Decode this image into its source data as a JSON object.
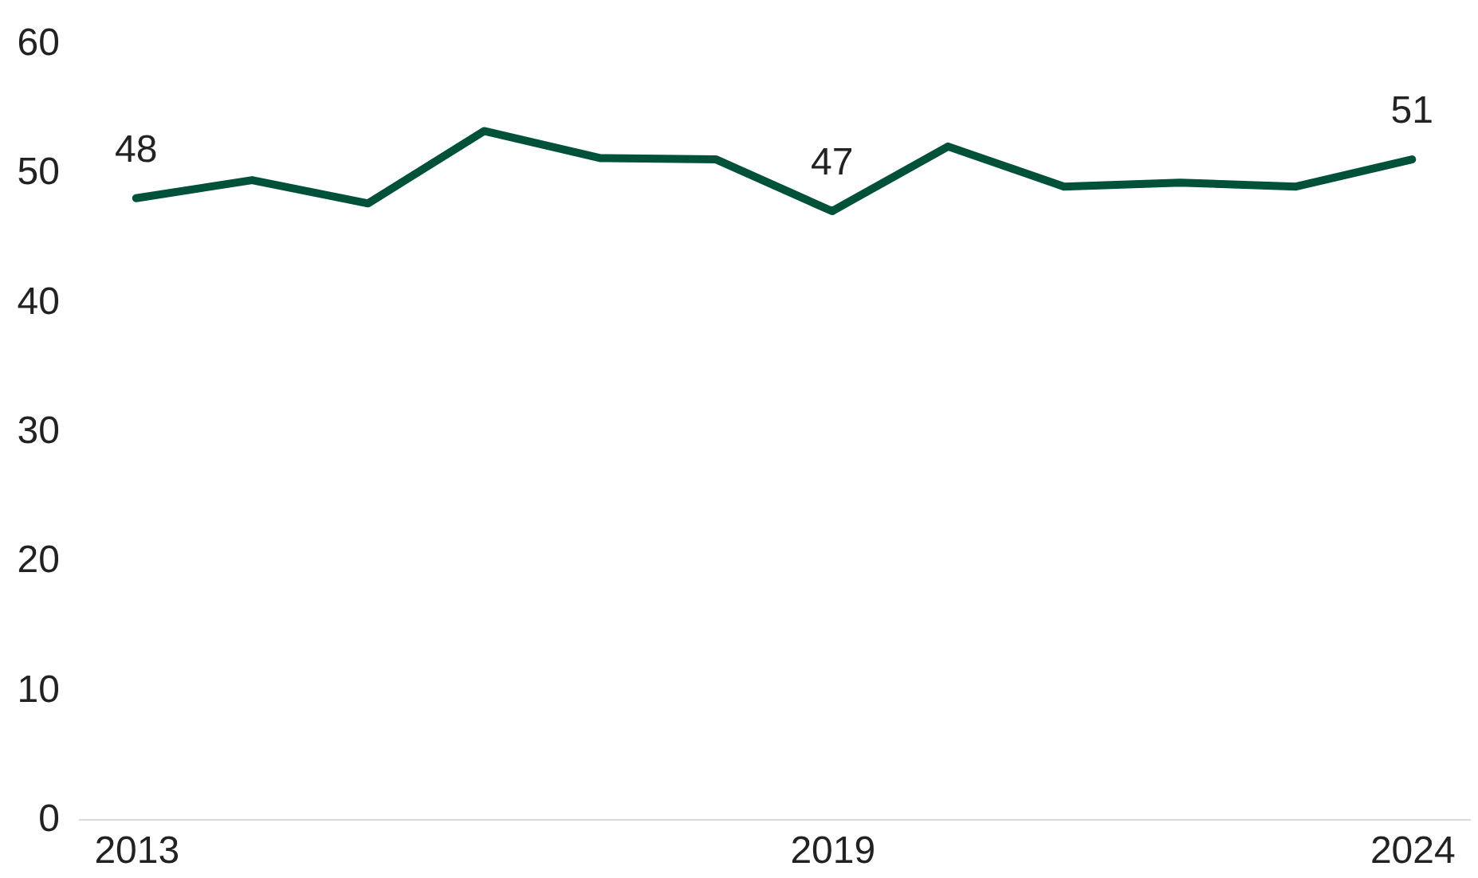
{
  "chart_data": {
    "type": "line",
    "x": [
      2013,
      2014,
      2015,
      2016,
      2017,
      2018,
      2019,
      2020,
      2021,
      2022,
      2023,
      2024
    ],
    "series": [
      {
        "color": "#00513a",
        "values": [
          48,
          49.4,
          47.6,
          53.2,
          51.1,
          51.0,
          47,
          52.0,
          48.9,
          49.2,
          48.9,
          51
        ],
        "value_labels": [
          "48",
          null,
          null,
          null,
          null,
          null,
          "47",
          null,
          null,
          null,
          null,
          "51"
        ]
      }
    ],
    "xlim": [
      2012.5,
      2024.5
    ],
    "xticks": [
      2013,
      2019,
      2024
    ],
    "ylim": [
      0,
      60
    ],
    "yticks": [
      0,
      10,
      20,
      30,
      40,
      50,
      60
    ],
    "grid": false,
    "marker": "none",
    "line_style": "solid"
  }
}
